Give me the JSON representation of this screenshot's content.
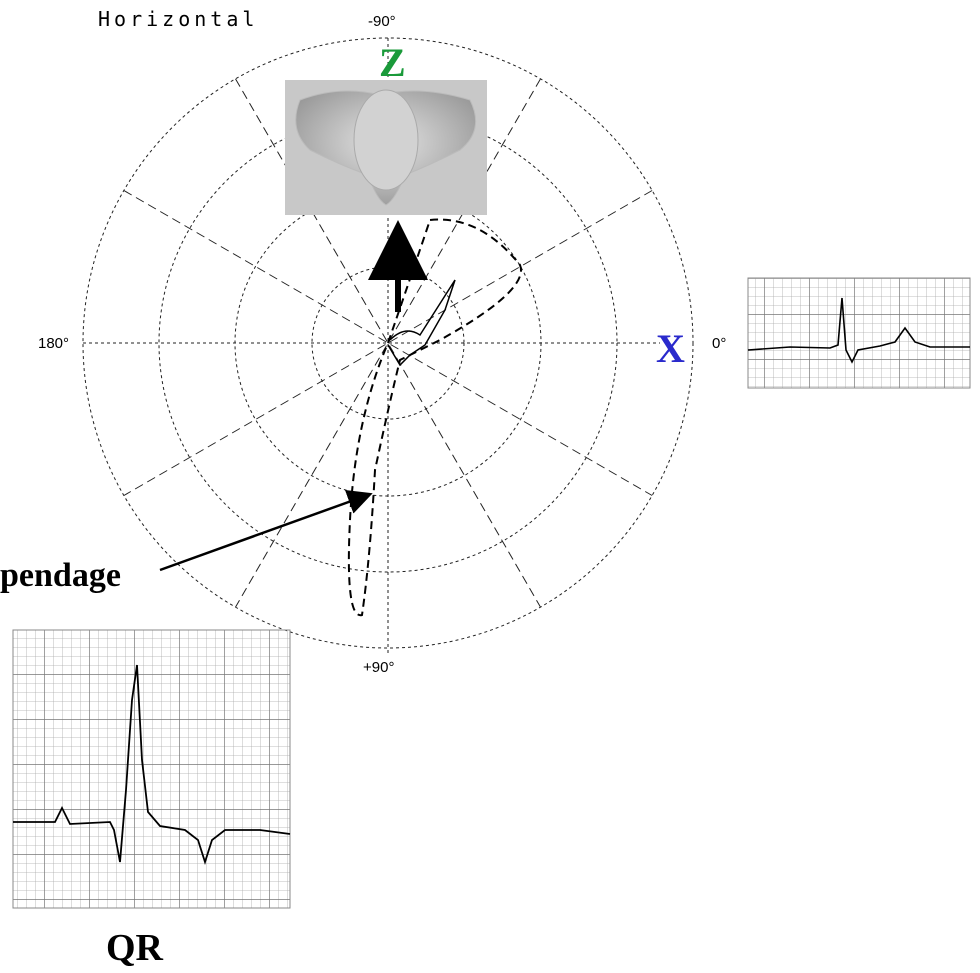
{
  "title": "Horizontal",
  "angle_labels": {
    "top": "-90°",
    "bottom": "+90°",
    "left": "180°",
    "right": "0°"
  },
  "axes": {
    "z": "Z",
    "x": "X"
  },
  "annotation": "pendage",
  "ecg_label": "QR"
}
